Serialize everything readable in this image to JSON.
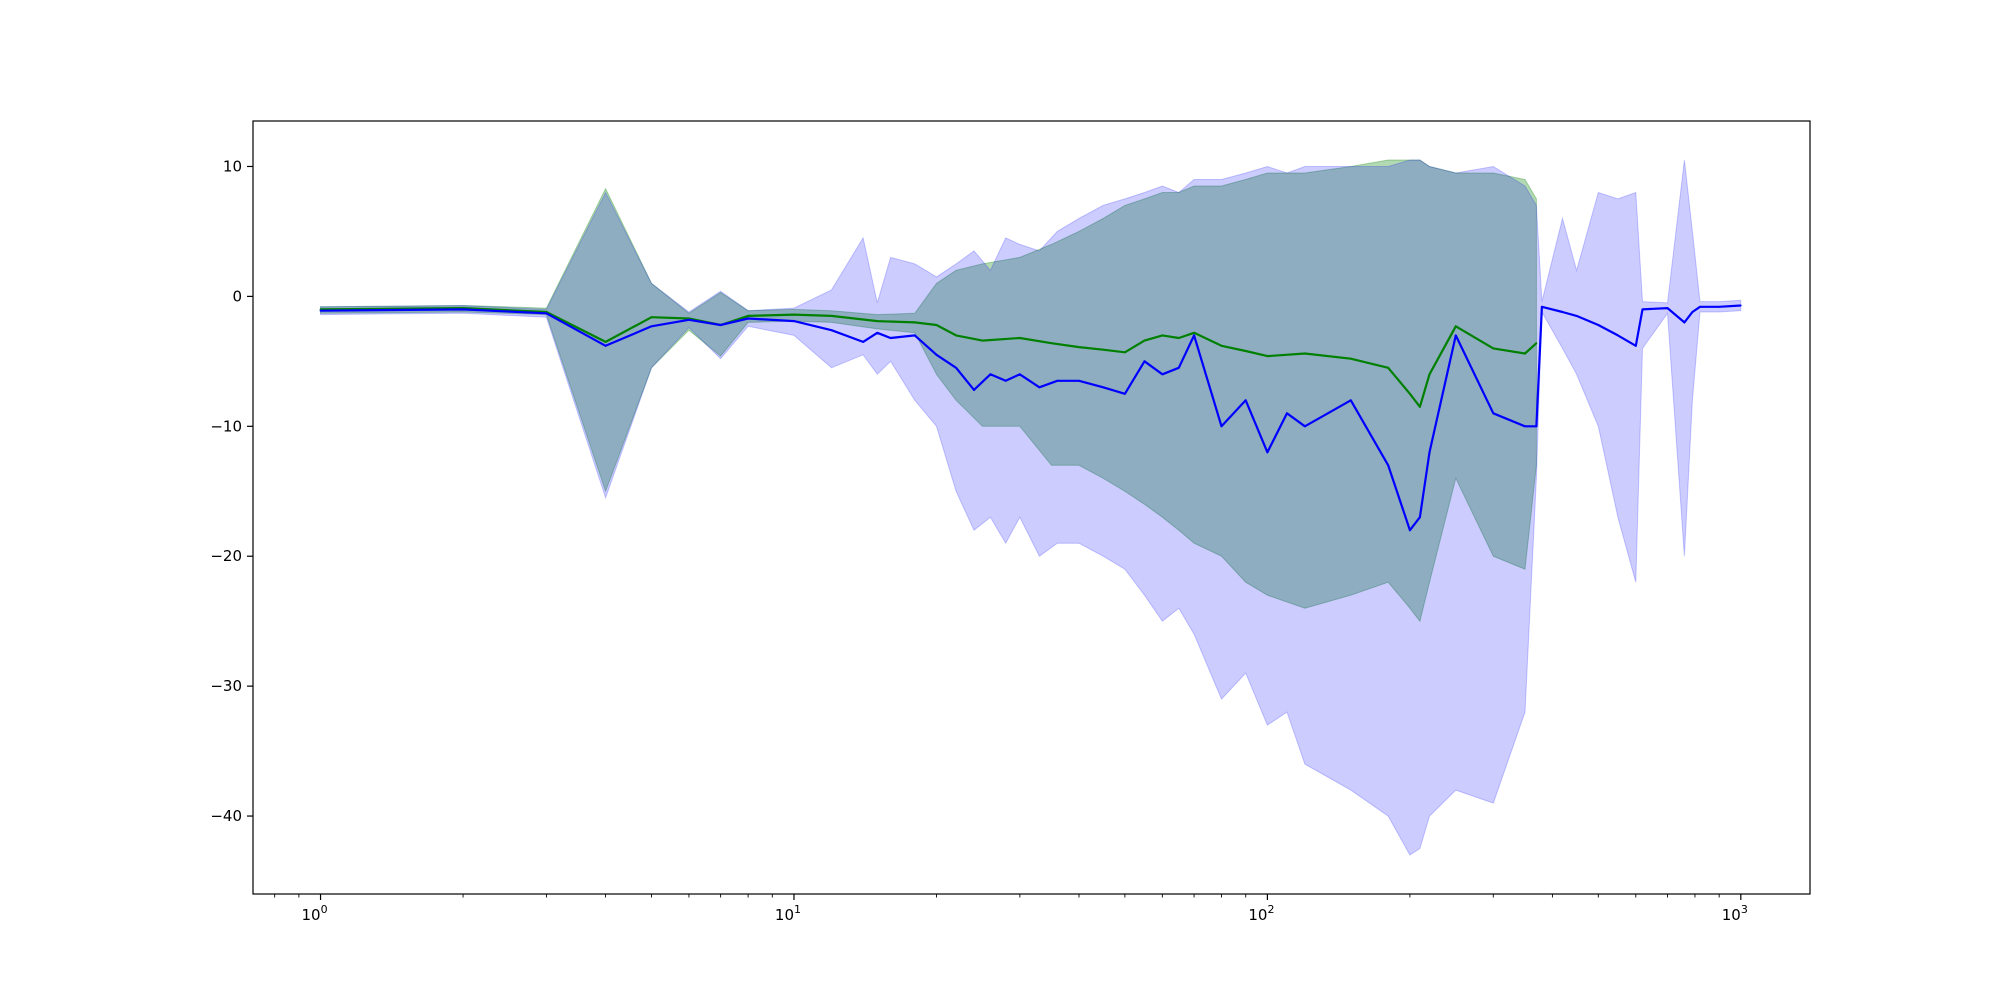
{
  "chart_data": {
    "type": "line",
    "title": "",
    "xlabel": "",
    "ylabel": "",
    "xscale": "log",
    "xlim": [
      0.72,
      1400
    ],
    "ylim": [
      -46,
      13.5
    ],
    "grid": false,
    "legend": "none",
    "x_ticks": [
      {
        "base": "10",
        "exp": "0",
        "value": 1
      },
      {
        "base": "10",
        "exp": "1",
        "value": 10
      },
      {
        "base": "10",
        "exp": "2",
        "value": 100
      },
      {
        "base": "10",
        "exp": "3",
        "value": 1000
      }
    ],
    "y_ticks": [
      {
        "label": "10",
        "value": 10
      },
      {
        "label": "0",
        "value": 0
      },
      {
        "label": "−10",
        "value": -10
      },
      {
        "label": "−20",
        "value": -20
      },
      {
        "label": "−30",
        "value": -30
      },
      {
        "label": "−40",
        "value": -40
      }
    ],
    "series": [
      {
        "color": "#008000",
        "band_color": "#008000",
        "band_opacity": 0.3,
        "x": [
          1,
          2,
          3,
          4,
          5,
          6,
          7,
          8,
          10,
          12,
          15,
          18,
          20,
          22,
          25,
          30,
          35,
          40,
          45,
          50,
          55,
          60,
          65,
          70,
          80,
          90,
          100,
          120,
          150,
          180,
          200,
          210,
          220,
          250,
          300,
          350,
          370
        ],
        "y": [
          -1.0,
          -0.9,
          -1.2,
          -3.5,
          -1.6,
          -1.7,
          -2.2,
          -1.5,
          -1.4,
          -1.5,
          -1.9,
          -2.0,
          -2.2,
          -3.0,
          -3.4,
          -3.2,
          -3.6,
          -3.9,
          -4.1,
          -4.3,
          -3.4,
          -3.0,
          -3.2,
          -2.8,
          -3.8,
          -4.2,
          -4.6,
          -4.4,
          -4.8,
          -5.5,
          -7.5,
          -8.5,
          -6.0,
          -2.3,
          -4.0,
          -4.4,
          -3.6
        ],
        "lower": [
          -1.3,
          -1.2,
          -1.4,
          -15.0,
          -5.5,
          -2.6,
          -4.6,
          -2.0,
          -1.9,
          -2.0,
          -2.5,
          -2.8,
          -6.0,
          -8.0,
          -10.0,
          -10.0,
          -13.0,
          -13.0,
          -14.0,
          -15.0,
          -16.0,
          -17.0,
          -18.0,
          -19.0,
          -20.0,
          -22.0,
          -23.0,
          -24.0,
          -23.0,
          -22.0,
          -24.0,
          -25.0,
          -22.0,
          -14.0,
          -20.0,
          -21.0,
          -13.0
        ],
        "upper": [
          -0.8,
          -0.7,
          -0.9,
          8.3,
          1.0,
          -1.3,
          0.3,
          -1.1,
          -1.0,
          -1.1,
          -1.4,
          -1.3,
          1.0,
          2.0,
          2.5,
          3.0,
          4.0,
          5.0,
          6.0,
          7.0,
          7.5,
          8.0,
          8.0,
          8.5,
          8.5,
          9.0,
          9.5,
          9.5,
          10.0,
          10.5,
          10.5,
          10.5,
          10.0,
          9.5,
          9.5,
          9.0,
          7.5
        ]
      },
      {
        "color": "#0000ff",
        "band_color": "#0000ff",
        "band_opacity": 0.2,
        "x": [
          1,
          2,
          3,
          4,
          5,
          6,
          7,
          8,
          10,
          12,
          14,
          15,
          16,
          18,
          20,
          22,
          24,
          26,
          28,
          30,
          33,
          36,
          40,
          45,
          50,
          55,
          60,
          65,
          70,
          80,
          90,
          100,
          110,
          120,
          150,
          180,
          200,
          210,
          220,
          250,
          300,
          350,
          370,
          380,
          420,
          450,
          500,
          550,
          600,
          620,
          700,
          760,
          790,
          820,
          900,
          1000
        ],
        "y": [
          -1.1,
          -1.0,
          -1.3,
          -3.8,
          -2.3,
          -1.8,
          -2.2,
          -1.7,
          -1.9,
          -2.6,
          -3.5,
          -2.8,
          -3.2,
          -3.0,
          -4.5,
          -5.5,
          -7.2,
          -6.0,
          -6.5,
          -6.0,
          -7.0,
          -6.5,
          -6.5,
          -7.0,
          -7.5,
          -5.0,
          -6.0,
          -5.5,
          -3.0,
          -10.0,
          -8.0,
          -12.0,
          -9.0,
          -10.0,
          -8.0,
          -13.0,
          -18.0,
          -17.0,
          -12.0,
          -3.0,
          -9.0,
          -10.0,
          -10.0,
          -0.8,
          -1.2,
          -1.5,
          -2.2,
          -3.0,
          -3.8,
          -1.0,
          -0.9,
          -2.0,
          -1.2,
          -0.8,
          -0.8,
          -0.7
        ],
        "lower": [
          -1.4,
          -1.3,
          -1.6,
          -15.5,
          -5.5,
          -2.4,
          -4.8,
          -2.3,
          -3.0,
          -5.5,
          -4.5,
          -6.0,
          -5.0,
          -8.0,
          -10.0,
          -15.0,
          -18.0,
          -17.0,
          -19.0,
          -17.0,
          -20.0,
          -19.0,
          -19.0,
          -20.0,
          -21.0,
          -23.0,
          -25.0,
          -24.0,
          -26.0,
          -31.0,
          -29.0,
          -33.0,
          -32.0,
          -36.0,
          -38.0,
          -40.0,
          -43.0,
          -42.5,
          -40.0,
          -38.0,
          -39.0,
          -32.0,
          -14.0,
          -1.2,
          -4.0,
          -6.0,
          -10.0,
          -17.0,
          -22.0,
          -4.0,
          -1.3,
          -20.0,
          -8.0,
          -1.2,
          -1.2,
          -1.1
        ],
        "upper": [
          -0.8,
          -0.7,
          -1.0,
          8.0,
          1.0,
          -1.2,
          0.4,
          -1.1,
          -0.9,
          0.5,
          4.5,
          -0.5,
          3.0,
          2.5,
          1.5,
          2.5,
          3.5,
          2.0,
          4.5,
          4.0,
          3.5,
          5.0,
          6.0,
          7.0,
          7.5,
          8.0,
          8.5,
          8.0,
          9.0,
          9.0,
          9.5,
          10.0,
          9.5,
          10.0,
          10.0,
          10.0,
          10.5,
          10.5,
          10.0,
          9.5,
          10.0,
          8.5,
          7.0,
          -0.4,
          6.0,
          2.0,
          8.0,
          7.5,
          8.0,
          -0.4,
          -0.5,
          10.5,
          5.0,
          -0.4,
          -0.4,
          -0.3
        ]
      }
    ]
  }
}
